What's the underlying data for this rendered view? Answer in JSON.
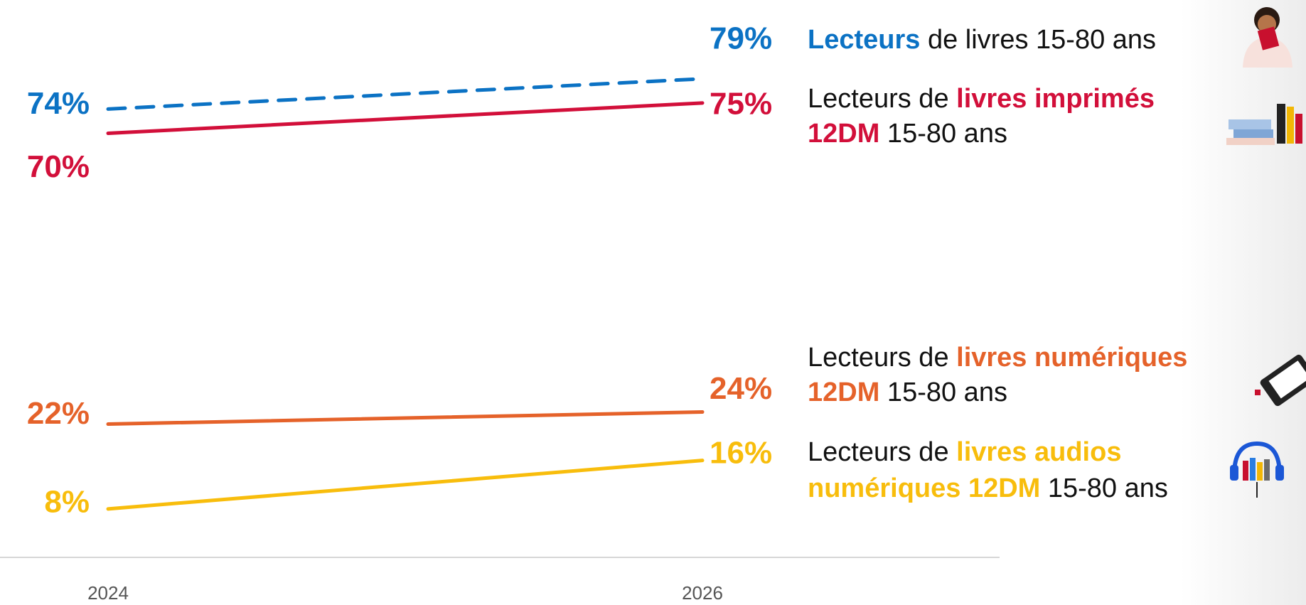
{
  "chart_data": {
    "type": "line",
    "categories": [
      "2024",
      "2026"
    ],
    "ylim": [
      0,
      92
    ],
    "series": [
      {
        "name": [
          [
            {
              "text": "Lecteurs",
              "highlight": true
            },
            {
              "text": " de livres 15-80 ans"
            }
          ]
        ],
        "color": "#0b72c4",
        "dash": true,
        "values": [
          74,
          79
        ],
        "value_labels": [
          "74%",
          "79%"
        ]
      },
      {
        "name": [
          [
            {
              "text": "Lecteurs de "
            },
            {
              "text": "livres imprimés",
              "highlight": true
            }
          ],
          [
            {
              "text": "12DM",
              "highlight": true
            },
            {
              "text": " 15-80 ans"
            }
          ]
        ],
        "color": "#d20f3a",
        "values": [
          70,
          75
        ],
        "value_labels": [
          "70%",
          "75%"
        ]
      },
      {
        "name": [
          [
            {
              "text": "Lecteurs de "
            },
            {
              "text": "livres numériques",
              "highlight": true
            }
          ],
          [
            {
              "text": "12DM",
              "highlight": true
            },
            {
              "text": " 15-80 ans"
            }
          ]
        ],
        "color": "#e5622a",
        "values": [
          22,
          24
        ],
        "value_labels": [
          "22%",
          "24%"
        ]
      },
      {
        "name": [
          [
            {
              "text": "Lecteurs de "
            },
            {
              "text": "livres audios",
              "highlight": true
            }
          ],
          [
            {
              "text": "numériques 12DM",
              "highlight": true
            },
            {
              "text": " 15-80 ans"
            }
          ]
        ],
        "color": "#f8bd0c",
        "values": [
          8,
          16
        ],
        "value_labels": [
          "8%",
          "16%"
        ]
      }
    ]
  }
}
